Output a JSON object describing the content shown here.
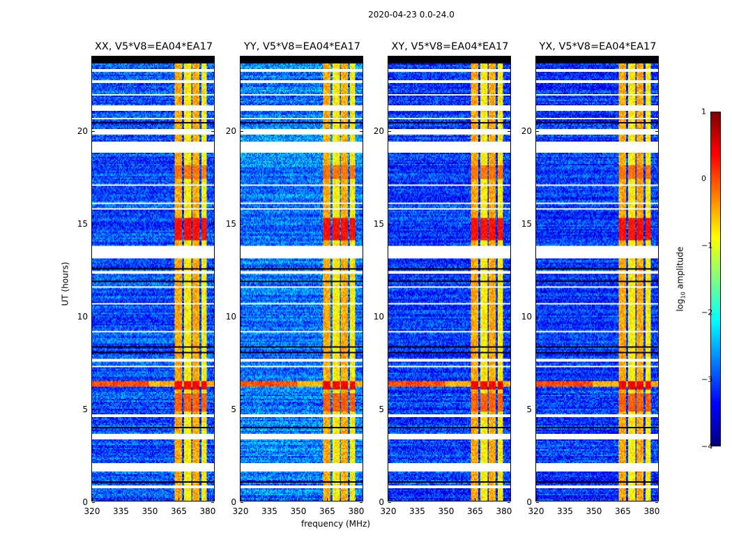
{
  "chart_data": {
    "type": "heatmap",
    "title": "2020-04-23 0.0-24.0",
    "xlabel": "frequency (MHz)",
    "ylabel": "UT (hours)",
    "xlim": [
      320,
      384
    ],
    "ylim": [
      0,
      24
    ],
    "xticks": [
      "320",
      "335",
      "350",
      "365",
      "380"
    ],
    "xtick_values": [
      320,
      335,
      350,
      365,
      380
    ],
    "yticks": [
      "0",
      "5",
      "10",
      "15",
      "20"
    ],
    "ytick_values": [
      0,
      5,
      10,
      15,
      20
    ],
    "panels": [
      {
        "title": "XX, V5*V8=EA04*EA17",
        "baseline": -3.0
      },
      {
        "title": "YY, V5*V8=EA04*EA17",
        "baseline": -2.8
      },
      {
        "title": "XY, V5*V8=EA04*EA17",
        "baseline": -3.1
      },
      {
        "title": "YX, V5*V8=EA04*EA17",
        "baseline": -3.1
      }
    ],
    "rfi_band_mhz": [
      363.5,
      380
    ],
    "rfi_band_gaps_mhz": [
      367.8,
      372.3,
      376.8
    ],
    "rfi_band_level": -0.6,
    "strong_rfi_hours": [
      [
        14.1,
        15.3,
        0.3
      ],
      [
        6.0,
        6.5,
        0.4
      ],
      [
        4.8,
        5.8,
        -0.1
      ],
      [
        17.4,
        18.1,
        -0.2
      ]
    ],
    "broadband_rfi_hours": [
      [
        6.2,
        6.5,
        -0.3
      ]
    ],
    "flagged_hours_white": [
      [
        23.2,
        23.3
      ],
      [
        22.6,
        22.7
      ],
      [
        21.9,
        22.0
      ],
      [
        21.1,
        21.4
      ],
      [
        20.6,
        20.7
      ],
      [
        19.8,
        20.1
      ],
      [
        18.8,
        19.4
      ],
      [
        17.0,
        17.1
      ],
      [
        16.0,
        16.1
      ],
      [
        15.7,
        15.8
      ],
      [
        13.1,
        13.8
      ],
      [
        12.3,
        12.4
      ],
      [
        11.5,
        11.6
      ],
      [
        10.6,
        10.7
      ],
      [
        9.1,
        9.2
      ],
      [
        7.5,
        7.7
      ],
      [
        7.2,
        7.3
      ],
      [
        4.5,
        4.7
      ],
      [
        3.3,
        3.6
      ],
      [
        1.6,
        2.0
      ],
      [
        0.7,
        0.8
      ]
    ],
    "flagged_hours_black": [
      [
        23.6,
        24.0
      ],
      [
        23.0,
        23.05
      ],
      [
        20.4,
        20.45
      ],
      [
        16.3,
        16.35
      ],
      [
        12.5,
        12.55
      ],
      [
        11.8,
        11.85
      ],
      [
        8.3,
        8.35
      ],
      [
        8.0,
        8.05
      ],
      [
        3.9,
        3.95
      ],
      [
        1.0,
        1.05
      ]
    ],
    "colorbar": {
      "label": "log10 amplitude",
      "range": [
        -4,
        1
      ],
      "ticks": [
        "1",
        "0",
        "−1",
        "−2",
        "−3",
        "−4"
      ],
      "tick_values": [
        1,
        0,
        -1,
        -2,
        -3,
        -4
      ],
      "colormap": "jet"
    }
  }
}
